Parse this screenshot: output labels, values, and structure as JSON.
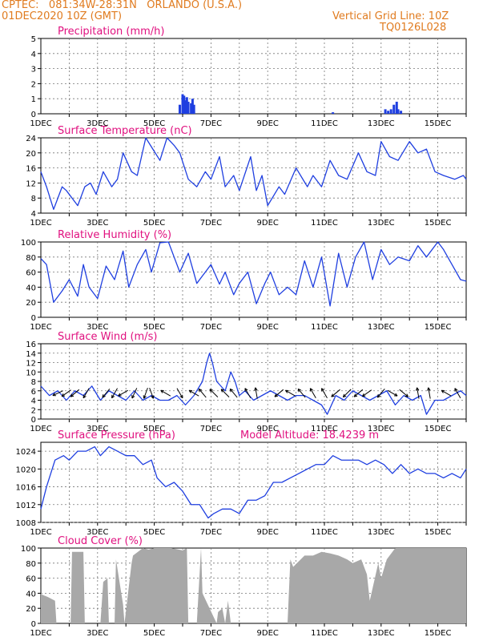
{
  "header": {
    "line1": "CPTEC:   081:34W-28:31N   ORLANDO (U.S.A.)",
    "line2": "01DEC2020 10Z (GMT)",
    "grid_note": "Vertical Grid Line: 10Z",
    "code": "TQ0126L028"
  },
  "colors": {
    "header": "#e07b1f",
    "title": "#e0107f",
    "series": "#1f3fe0",
    "bar": "#1f3fe0",
    "cloud": "#a8a8a8",
    "wind_arrow": "#000000"
  },
  "x_ticks": [
    "1DEC",
    "3DEC",
    "5DEC",
    "7DEC",
    "9DEC",
    "11DEC",
    "13DEC",
    "15DEC"
  ],
  "model_altitude": "Model Altitude: 18.4239 m",
  "chart_data": [
    {
      "id": "precip",
      "type": "bar",
      "title": "Precipitation (mm/h)",
      "ylim": [
        0,
        5
      ],
      "yticks": [
        "0",
        "1",
        "2",
        "3",
        "4",
        "5"
      ],
      "x_days": [
        5.9,
        6.0,
        6.05,
        6.1,
        6.15,
        6.2,
        6.3,
        6.35,
        6.4,
        11.3,
        13.15,
        13.25,
        13.35,
        13.45,
        13.55,
        13.6,
        13.7
      ],
      "values": [
        0.6,
        1.3,
        1.2,
        0.9,
        1.1,
        0.8,
        0.7,
        1.0,
        0.6,
        0.1,
        0.3,
        0.2,
        0.3,
        0.6,
        0.8,
        0.3,
        0.2
      ]
    },
    {
      "id": "temp",
      "type": "line",
      "title": "Surface Temperature (nC)",
      "ylim": [
        4,
        24
      ],
      "yticks": [
        "4",
        "8",
        "12",
        "16",
        "20",
        "24"
      ],
      "x_days": [
        1.0,
        1.2,
        1.45,
        1.75,
        1.9,
        2.3,
        2.55,
        2.75,
        2.95,
        3.2,
        3.5,
        3.7,
        3.9,
        4.2,
        4.4,
        4.7,
        4.95,
        5.2,
        5.45,
        5.7,
        5.9,
        6.2,
        6.5,
        6.8,
        7.0,
        7.3,
        7.5,
        7.8,
        8.0,
        8.4,
        8.6,
        8.8,
        9.0,
        9.4,
        9.6,
        10.0,
        10.4,
        10.6,
        10.9,
        11.2,
        11.5,
        11.8,
        12.2,
        12.5,
        12.8,
        13.0,
        13.3,
        13.6,
        14.0,
        14.3,
        14.6,
        14.9,
        15.2,
        15.6,
        15.9,
        16.0
      ],
      "values": [
        15,
        11,
        5,
        11,
        10,
        6,
        11,
        12,
        9,
        15,
        11,
        13,
        20,
        15,
        14,
        24,
        21,
        18,
        24,
        22,
        20,
        13,
        11,
        15,
        13,
        19,
        11,
        14,
        10,
        19,
        10,
        14,
        6,
        11,
        9,
        16,
        11,
        14,
        11,
        18,
        14,
        13,
        20,
        15,
        14,
        23,
        19,
        18,
        23,
        20,
        21,
        15,
        14,
        13,
        14,
        13
      ]
    },
    {
      "id": "rh",
      "type": "line",
      "title": "Relative Humidity (%)",
      "ylim": [
        0,
        100
      ],
      "yticks": [
        "0",
        "20",
        "40",
        "60",
        "80",
        "100"
      ],
      "x_days": [
        1.0,
        1.2,
        1.45,
        1.75,
        2.0,
        2.3,
        2.5,
        2.7,
        3.0,
        3.3,
        3.6,
        3.9,
        4.1,
        4.4,
        4.7,
        4.9,
        5.2,
        5.5,
        5.7,
        5.9,
        6.2,
        6.5,
        6.8,
        7.0,
        7.3,
        7.5,
        7.8,
        8.0,
        8.3,
        8.6,
        8.9,
        9.1,
        9.4,
        9.7,
        10.0,
        10.3,
        10.6,
        10.9,
        11.2,
        11.5,
        11.8,
        12.1,
        12.4,
        12.7,
        13.0,
        13.3,
        13.6,
        14.0,
        14.3,
        14.6,
        15.0,
        15.2,
        15.5,
        15.8,
        16.0
      ],
      "values": [
        78,
        70,
        20,
        35,
        50,
        28,
        70,
        40,
        25,
        68,
        50,
        88,
        40,
        70,
        90,
        60,
        99,
        100,
        80,
        60,
        85,
        45,
        60,
        70,
        44,
        60,
        30,
        45,
        60,
        18,
        45,
        60,
        30,
        40,
        30,
        75,
        40,
        80,
        15,
        85,
        40,
        80,
        100,
        50,
        90,
        70,
        80,
        75,
        95,
        80,
        100,
        90,
        70,
        50,
        48
      ]
    },
    {
      "id": "wind",
      "type": "line",
      "title": "Surface Wind (m/s)",
      "ylim": [
        0,
        16
      ],
      "yticks": [
        "0",
        "2",
        "4",
        "6",
        "8",
        "10",
        "12",
        "14",
        "16"
      ],
      "x_days": [
        1.0,
        1.3,
        1.6,
        1.9,
        2.2,
        2.5,
        2.8,
        3.1,
        3.4,
        3.7,
        4.0,
        4.3,
        4.6,
        4.9,
        5.2,
        5.5,
        5.8,
        6.1,
        6.4,
        6.7,
        6.85,
        6.95,
        7.05,
        7.2,
        7.5,
        7.7,
        7.85,
        8.0,
        8.2,
        8.5,
        8.8,
        9.1,
        9.4,
        9.7,
        10.0,
        10.3,
        10.6,
        10.9,
        11.1,
        11.4,
        11.7,
        12.0,
        12.3,
        12.6,
        12.9,
        13.2,
        13.5,
        13.8,
        14.1,
        14.4,
        14.6,
        14.9,
        15.2,
        15.5,
        15.8,
        16.0
      ],
      "values": [
        7,
        5,
        6,
        4,
        6,
        5,
        7,
        4,
        6,
        5,
        4,
        6,
        4,
        5,
        4,
        4,
        5,
        3,
        5,
        8,
        12,
        14,
        12,
        8,
        6,
        10,
        8,
        5,
        6,
        4,
        5,
        6,
        5,
        4,
        5,
        5,
        4,
        3,
        1,
        5,
        4,
        6,
        5,
        4,
        5,
        6,
        3,
        5,
        4,
        5,
        1,
        4,
        4,
        5,
        6,
        5
      ],
      "arrows": [
        {
          "x": 1.6,
          "dir": 245
        },
        {
          "x": 1.9,
          "dir": 235
        },
        {
          "x": 2.2,
          "dir": 230
        },
        {
          "x": 2.6,
          "dir": 210
        },
        {
          "x": 3.3,
          "dir": 220
        },
        {
          "x": 3.6,
          "dir": 210
        },
        {
          "x": 3.9,
          "dir": 240
        },
        {
          "x": 4.3,
          "dir": 205
        },
        {
          "x": 4.7,
          "dir": 200
        },
        {
          "x": 4.9,
          "dir": 160
        },
        {
          "x": 5.4,
          "dir": 300
        },
        {
          "x": 5.9,
          "dir": 150
        },
        {
          "x": 6.4,
          "dir": 300
        },
        {
          "x": 6.7,
          "dir": 320
        },
        {
          "x": 7.1,
          "dir": 315
        },
        {
          "x": 7.5,
          "dir": 315
        },
        {
          "x": 7.8,
          "dir": 320
        },
        {
          "x": 8.3,
          "dir": 330
        },
        {
          "x": 8.6,
          "dir": 350
        },
        {
          "x": 9.4,
          "dir": 230
        },
        {
          "x": 9.8,
          "dir": 300
        },
        {
          "x": 10.2,
          "dir": 320
        },
        {
          "x": 10.6,
          "dir": 330
        },
        {
          "x": 11.0,
          "dir": 330
        },
        {
          "x": 11.4,
          "dir": 230
        },
        {
          "x": 11.8,
          "dir": 225
        },
        {
          "x": 12.2,
          "dir": 230
        },
        {
          "x": 12.5,
          "dir": 235
        },
        {
          "x": 13.0,
          "dir": 220
        },
        {
          "x": 13.4,
          "dir": 120
        },
        {
          "x": 13.8,
          "dir": 130
        },
        {
          "x": 14.3,
          "dir": 350
        },
        {
          "x": 14.7,
          "dir": 350
        },
        {
          "x": 15.3,
          "dir": 300
        },
        {
          "x": 15.7,
          "dir": 330
        }
      ]
    },
    {
      "id": "press",
      "type": "line",
      "title": "Surface Pressure (hPa)",
      "ylim": [
        1008,
        1026
      ],
      "yticks": [
        "1008",
        "1012",
        "1016",
        "1020",
        "1024"
      ],
      "x_days": [
        1.0,
        1.2,
        1.5,
        1.8,
        2.0,
        2.3,
        2.6,
        2.9,
        3.1,
        3.4,
        3.7,
        4.0,
        4.3,
        4.6,
        4.9,
        5.1,
        5.4,
        5.7,
        6.0,
        6.3,
        6.6,
        6.9,
        7.1,
        7.4,
        7.7,
        8.0,
        8.3,
        8.6,
        8.9,
        9.2,
        9.5,
        9.8,
        10.1,
        10.4,
        10.7,
        11.0,
        11.3,
        11.6,
        11.9,
        12.2,
        12.5,
        12.8,
        13.1,
        13.4,
        13.7,
        14.0,
        14.3,
        14.6,
        14.9,
        15.2,
        15.5,
        15.8,
        16.0
      ],
      "values": [
        1011,
        1016,
        1022,
        1023,
        1022,
        1024,
        1024,
        1025,
        1023,
        1025,
        1024,
        1023,
        1023,
        1021,
        1022,
        1018,
        1016,
        1017,
        1015,
        1012,
        1012,
        1009,
        1010,
        1011,
        1011,
        1010,
        1013,
        1013,
        1014,
        1017,
        1017,
        1018,
        1019,
        1020,
        1021,
        1021,
        1023,
        1022,
        1022,
        1022,
        1021,
        1022,
        1021,
        1019,
        1021,
        1019,
        1020,
        1019,
        1019,
        1018,
        1019,
        1018,
        1020
      ]
    },
    {
      "id": "cloud",
      "type": "area",
      "title": "Cloud Cover (%)",
      "ylim": [
        0,
        100
      ],
      "yticks": [
        "0",
        "20",
        "40",
        "60",
        "80",
        "100"
      ],
      "x_days": [
        1.0,
        1.05,
        1.25,
        1.5,
        1.55,
        1.9,
        1.95,
        2.05,
        2.1,
        2.5,
        2.55,
        2.8,
        2.85,
        3.1,
        3.2,
        3.35,
        3.4,
        3.6,
        3.65,
        3.9,
        3.95,
        4.2,
        4.25,
        4.6,
        4.8,
        5.0,
        5.3,
        5.6,
        6.0,
        6.15,
        6.2,
        6.35,
        6.5,
        6.65,
        6.7,
        7.2,
        7.25,
        7.4,
        7.5,
        7.6,
        7.7,
        8.05,
        8.1,
        9.7,
        9.8,
        9.9,
        10.3,
        10.6,
        10.9,
        11.2,
        11.5,
        11.8,
        12.0,
        12.3,
        12.5,
        12.6,
        12.9,
        13.0,
        13.2,
        13.5,
        14.0,
        14.5,
        15.0,
        15.5,
        16.0
      ],
      "values": [
        40,
        38,
        35,
        30,
        0,
        0,
        0,
        0,
        95,
        95,
        0,
        0,
        0,
        0,
        55,
        60,
        0,
        0,
        85,
        25,
        0,
        80,
        90,
        100,
        98,
        100,
        100,
        100,
        97,
        100,
        0,
        0,
        0,
        100,
        40,
        0,
        15,
        20,
        0,
        30,
        0,
        0,
        0,
        0,
        85,
        75,
        90,
        90,
        95,
        93,
        90,
        85,
        80,
        85,
        65,
        30,
        80,
        60,
        85,
        100,
        100,
        100,
        100,
        100,
        100
      ]
    }
  ]
}
